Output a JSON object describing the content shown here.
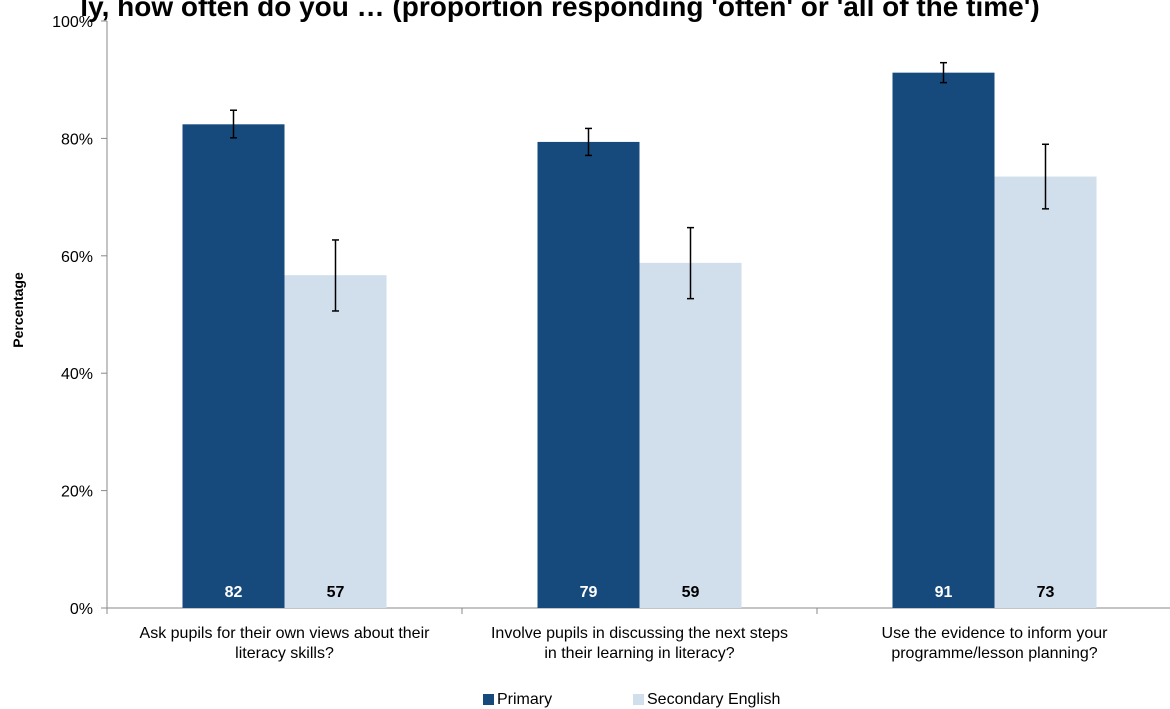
{
  "chart_data": {
    "type": "bar",
    "title": "ly, how often do you … (proportion responding 'often' or 'all of the time')",
    "ylabel": "Percentage",
    "ylim": [
      0,
      100
    ],
    "yticks": [
      "0%",
      "20%",
      "40%",
      "60%",
      "80%",
      "100%"
    ],
    "categories": [
      [
        "Ask pupils for their own views about their",
        "literacy skills?"
      ],
      [
        "Involve pupils in discussing the next steps",
        "in their learning in literacy?"
      ],
      [
        "Use the evidence to inform your",
        "programme/lesson planning?"
      ]
    ],
    "series": [
      {
        "name": "Primary",
        "color": "#174a7c",
        "values": [
          82.4,
          79.4,
          91.2
        ],
        "labels": [
          "82",
          "79",
          "91"
        ],
        "error_low": [
          80.1,
          77.1,
          89.5
        ],
        "error_high": [
          84.8,
          81.7,
          92.9
        ]
      },
      {
        "name": "Secondary English",
        "color": "#d1deec",
        "values": [
          56.7,
          58.8,
          73.5
        ],
        "labels": [
          "57",
          "59",
          "73"
        ],
        "error_low": [
          50.6,
          52.7,
          68.0
        ],
        "error_high": [
          62.7,
          64.8,
          79.0
        ]
      }
    ],
    "legend_position": "bottom"
  }
}
